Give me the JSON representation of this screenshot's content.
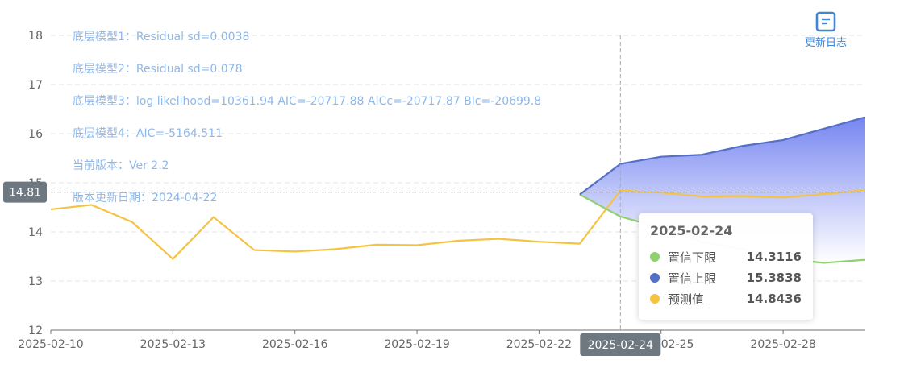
{
  "chart_data": {
    "type": "line",
    "x": [
      "2025-02-10",
      "2025-02-11",
      "2025-02-12",
      "2025-02-13",
      "2025-02-14",
      "2025-02-15",
      "2025-02-16",
      "2025-02-17",
      "2025-02-18",
      "2025-02-19",
      "2025-02-20",
      "2025-02-21",
      "2025-02-22",
      "2025-02-23",
      "2025-02-24",
      "2025-02-25",
      "2025-02-26",
      "2025-02-27",
      "2025-02-28",
      "2025-03-01",
      "2025-03-02"
    ],
    "x_tick_labels": [
      "2025-02-10",
      "2025-02-13",
      "2025-02-16",
      "2025-02-19",
      "2025-02-22",
      "2025-02-25",
      "2025-02-28"
    ],
    "ylim": [
      12,
      18
    ],
    "y_ticks": [
      12,
      13,
      14,
      15,
      16,
      17,
      18
    ],
    "grid": true,
    "series": [
      {
        "name": "预测值",
        "color": "#f5c342",
        "values": [
          14.46,
          14.55,
          14.2,
          13.45,
          14.3,
          13.63,
          13.6,
          13.65,
          13.74,
          13.73,
          13.82,
          13.86,
          13.8,
          13.76,
          14.8436,
          14.8,
          14.72,
          14.73,
          14.7,
          14.77,
          14.85
        ]
      },
      {
        "name": "置信下限",
        "color": "#8fd16f",
        "values": [
          null,
          null,
          null,
          null,
          null,
          null,
          null,
          null,
          null,
          null,
          null,
          null,
          null,
          14.76,
          14.3116,
          14.08,
          13.8,
          13.65,
          13.45,
          13.37,
          13.43
        ]
      },
      {
        "name": "置信上限",
        "color": "#5470c6",
        "values": [
          null,
          null,
          null,
          null,
          null,
          null,
          null,
          null,
          null,
          null,
          null,
          null,
          null,
          14.76,
          15.3838,
          15.53,
          15.57,
          15.75,
          15.87,
          16.1,
          16.33
        ]
      }
    ],
    "reference_line": {
      "value": 14.81,
      "label": "14.81"
    },
    "crosshair": {
      "x": "2025-02-24",
      "label": "2025-02-24"
    },
    "tooltip": {
      "date": "2025-02-24",
      "rows": [
        {
          "name": "置信下限",
          "value": "14.3116",
          "color": "#8fd16f"
        },
        {
          "name": "置信上限",
          "value": "15.3838",
          "color": "#5470c6"
        },
        {
          "name": "预测值",
          "value": "14.8436",
          "color": "#f5c342"
        }
      ]
    }
  },
  "notes": [
    "底层模型1：Residual sd=0.0038",
    "底层模型2：Residual sd=0.078",
    "底层模型3：log likelihood=10361.94 AIC=-20717.88 AICc=-20717.87 BIc=-20699.8",
    "底层模型4：AIC=-5164.511",
    "当前版本：Ver 2.2",
    "版本更新日期：2024-04-22"
  ],
  "changelog": {
    "label": "更新日志",
    "icon": "document-icon",
    "color": "#3e86d6"
  }
}
